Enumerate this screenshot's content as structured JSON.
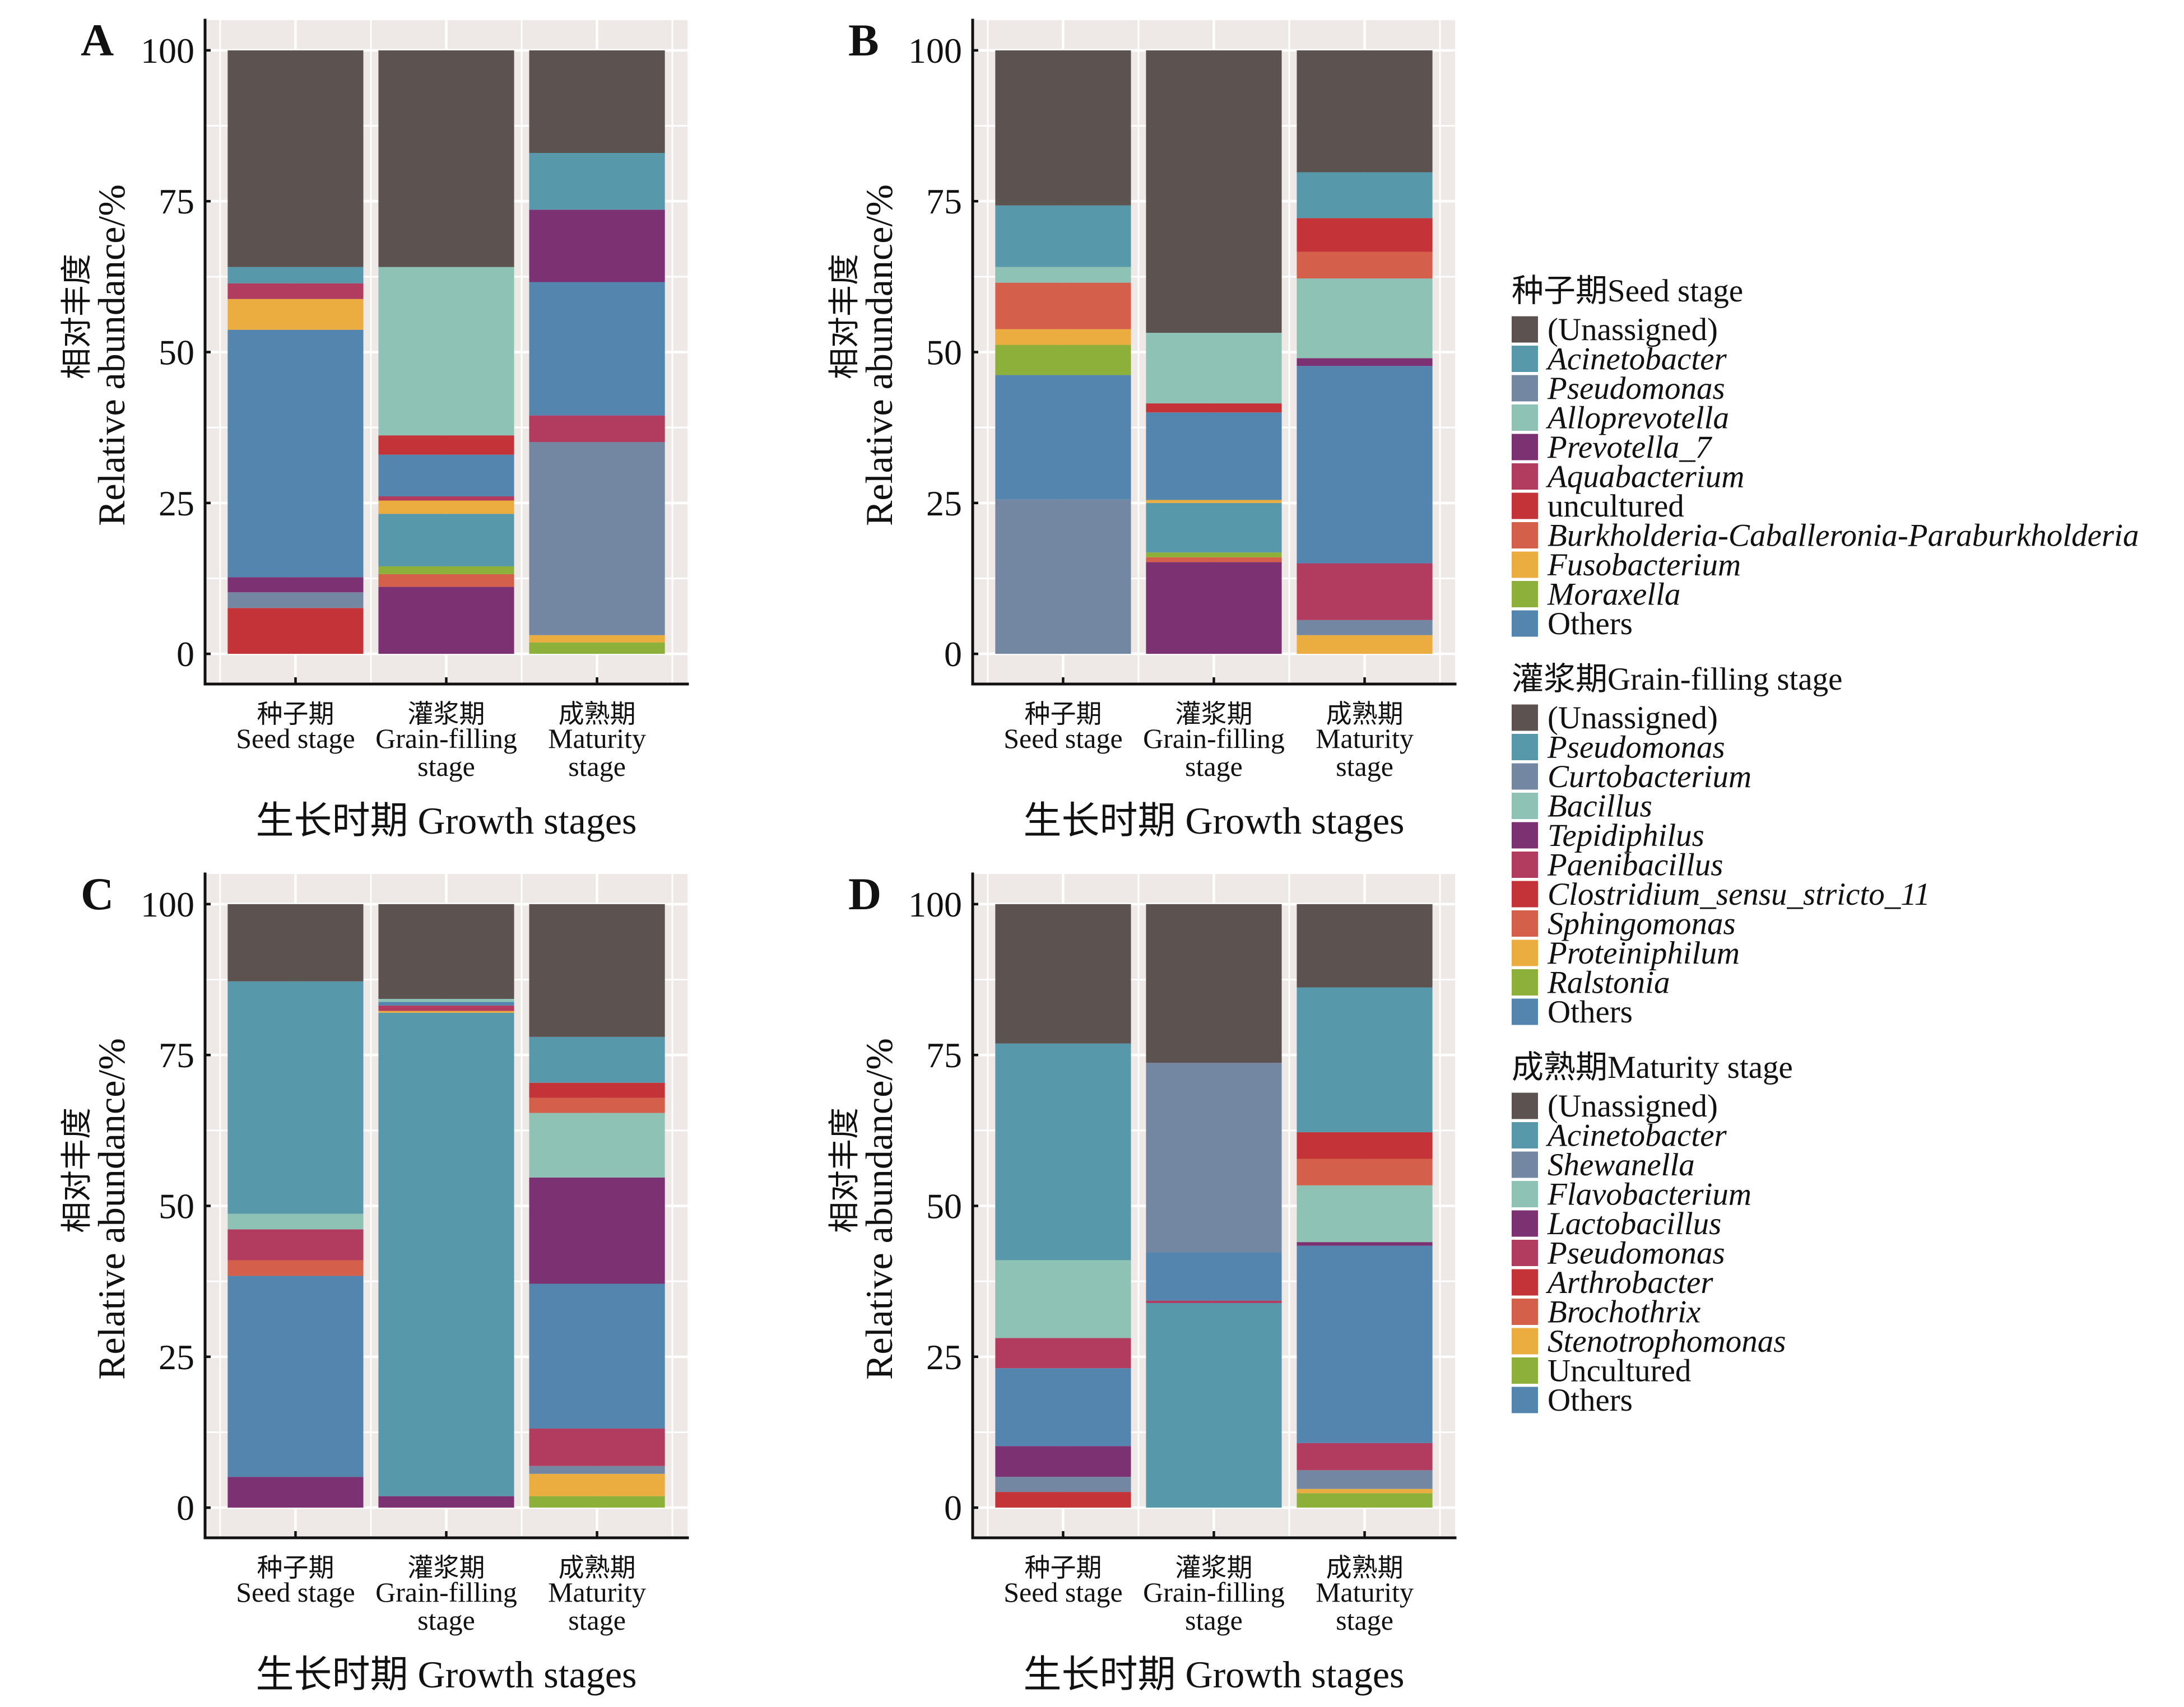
{
  "legend": [
    {
      "stage": "Seed stage",
      "title": "种子期Seed stage",
      "items": [
        {
          "label": "(Unassigned)",
          "italic": false,
          "color": "#5C524F"
        },
        {
          "label": "Acinetobacter",
          "italic": true,
          "color": "#5898AB"
        },
        {
          "label": "Pseudomonas",
          "italic": true,
          "color": "#7387A3"
        },
        {
          "label": "Alloprevotella",
          "italic": true,
          "color": "#8EC2B4"
        },
        {
          "label": "Prevotella_7",
          "italic": true,
          "color": "#7C3173"
        },
        {
          "label": "Aquabacterium",
          "italic": true,
          "color": "#B13C5F"
        },
        {
          "label": "uncultured",
          "italic": false,
          "color": "#C33337"
        },
        {
          "label": "Burkholderia-Caballeronia-Paraburkholderia",
          "italic": true,
          "color": "#D45F4A"
        },
        {
          "label": "Fusobacterium",
          "italic": true,
          "color": "#EBAD3F"
        },
        {
          "label": "Moraxella",
          "italic": true,
          "color": "#8DB03B"
        },
        {
          "label": "Others",
          "italic": false,
          "color": "#5385AE"
        }
      ]
    },
    {
      "stage": "Grain-filling stage",
      "title": "灌浆期Grain-filling stage",
      "items": [
        {
          "label": "(Unassigned)",
          "italic": false,
          "color": "#5C524F"
        },
        {
          "label": "Pseudomonas",
          "italic": true,
          "color": "#5898AB"
        },
        {
          "label": "Curtobacterium",
          "italic": true,
          "color": "#7387A3"
        },
        {
          "label": "Bacillus",
          "italic": true,
          "color": "#8EC2B4"
        },
        {
          "label": "Tepidiphilus",
          "italic": true,
          "color": "#7C3173"
        },
        {
          "label": "Paenibacillus",
          "italic": true,
          "color": "#B13C5F"
        },
        {
          "label": "Clostridium_sensu_stricto_11",
          "italic": true,
          "color": "#C33337"
        },
        {
          "label": "Sphingomonas",
          "italic": true,
          "color": "#D45F4A"
        },
        {
          "label": "Proteiniphilum",
          "italic": true,
          "color": "#EBAD3F"
        },
        {
          "label": "Ralstonia",
          "italic": true,
          "color": "#8DB03B"
        },
        {
          "label": "Others",
          "italic": false,
          "color": "#5385AE"
        }
      ]
    },
    {
      "stage": "Maturity stage",
      "title": "成熟期Maturity stage",
      "items": [
        {
          "label": "(Unassigned)",
          "italic": false,
          "color": "#5C524F"
        },
        {
          "label": "Acinetobacter",
          "italic": true,
          "color": "#5898AB"
        },
        {
          "label": "Shewanella",
          "italic": true,
          "color": "#7387A3"
        },
        {
          "label": "Flavobacterium",
          "italic": true,
          "color": "#8EC2B4"
        },
        {
          "label": "Lactobacillus",
          "italic": true,
          "color": "#7C3173"
        },
        {
          "label": "Pseudomonas",
          "italic": true,
          "color": "#B13C5F"
        },
        {
          "label": "Arthrobacter",
          "italic": true,
          "color": "#C33337"
        },
        {
          "label": "Brochothrix",
          "italic": true,
          "color": "#D45F4A"
        },
        {
          "label": "Stenotrophomonas",
          "italic": true,
          "color": "#EBAD3F"
        },
        {
          "label": "Uncultured",
          "italic": false,
          "color": "#8DB03B"
        },
        {
          "label": "Others",
          "italic": false,
          "color": "#5385AE"
        }
      ]
    }
  ],
  "chart_data": [
    {
      "panel": "A",
      "type": "bar",
      "stacked": true,
      "title": "",
      "xlabel": "生长时期 Growth stages",
      "ylabel": [
        "相对丰度",
        "Relative abundance/%"
      ],
      "ylim": [
        -5,
        105
      ],
      "yticks": [
        0,
        25,
        50,
        75,
        100
      ],
      "grid": true,
      "legend_position": "right",
      "categories": [
        "Seed stage",
        "Grain-filling stage",
        "Maturity stage"
      ],
      "category_labels": [
        [
          "种子期",
          "Seed stage"
        ],
        [
          "灌浆期",
          "Grain-filling",
          "stage"
        ],
        [
          "成熟期",
          "Maturity",
          "stage"
        ]
      ],
      "bars": [
        {
          "category": "Seed stage",
          "segments": [
            {
              "taxon": "uncultured",
              "value": 7.6
            },
            {
              "taxon": "Pseudomonas",
              "value": 2.6
            },
            {
              "taxon": "Prevotella_7",
              "value": 2.5
            },
            {
              "taxon": "Others",
              "value": 41.0
            },
            {
              "taxon": "Fusobacterium",
              "value": 5.1
            },
            {
              "taxon": "Aquabacterium",
              "value": 2.6
            },
            {
              "taxon": "Acinetobacter",
              "value": 2.7
            },
            {
              "taxon": "(Unassigned)",
              "value": 35.9
            }
          ]
        },
        {
          "category": "Grain-filling stage",
          "segments": [
            {
              "taxon": "Tepidiphilus",
              "value": 11.1
            },
            {
              "taxon": "Sphingomonas",
              "value": 2.1
            },
            {
              "taxon": "Ralstonia",
              "value": 1.3
            },
            {
              "taxon": "Pseudomonas",
              "value": 8.7
            },
            {
              "taxon": "Proteiniphilum",
              "value": 2.2
            },
            {
              "taxon": "Paenibacillus",
              "value": 0.7
            },
            {
              "taxon": "Others",
              "value": 6.9
            },
            {
              "taxon": "Clostridium_sensu_stricto_11",
              "value": 3.2
            },
            {
              "taxon": "Bacillus",
              "value": 27.9
            },
            {
              "taxon": "(Unassigned)",
              "value": 35.9
            }
          ]
        },
        {
          "category": "Maturity stage",
          "segments": [
            {
              "taxon": "Uncultured",
              "value": 1.9
            },
            {
              "taxon": "Stenotrophomonas",
              "value": 1.2
            },
            {
              "taxon": "Shewanella",
              "value": 32.0
            },
            {
              "taxon": "Pseudomonas",
              "value": 4.4
            },
            {
              "taxon": "Others",
              "value": 22.1
            },
            {
              "taxon": "Lactobacillus",
              "value": 12.0
            },
            {
              "taxon": "Acinetobacter",
              "value": 9.4
            },
            {
              "taxon": "(Unassigned)",
              "value": 17.0
            }
          ]
        }
      ]
    },
    {
      "panel": "B",
      "type": "bar",
      "stacked": true,
      "title": "",
      "xlabel": "生长时期 Growth stages",
      "ylabel": [
        "相对丰度",
        "Relative abundance/%"
      ],
      "ylim": [
        -5,
        105
      ],
      "yticks": [
        0,
        25,
        50,
        75,
        100
      ],
      "grid": true,
      "legend_position": "right",
      "categories": [
        "Seed stage",
        "Grain-filling stage",
        "Maturity stage"
      ],
      "category_labels": [
        [
          "种子期",
          "Seed stage"
        ],
        [
          "灌浆期",
          "Grain-filling",
          "stage"
        ],
        [
          "成熟期",
          "Maturity",
          "stage"
        ]
      ],
      "bars": [
        {
          "category": "Seed stage",
          "segments": [
            {
              "taxon": "Pseudomonas",
              "value": 25.6
            },
            {
              "taxon": "Others",
              "value": 20.6
            },
            {
              "taxon": "Moraxella",
              "value": 5.0
            },
            {
              "taxon": "Fusobacterium",
              "value": 2.6
            },
            {
              "taxon": "Burkholderia-Caballeronia-Paraburkholderia",
              "value": 7.7
            },
            {
              "taxon": "Alloprevotella",
              "value": 2.6
            },
            {
              "taxon": "Acinetobacter",
              "value": 10.2
            },
            {
              "taxon": "(Unassigned)",
              "value": 25.7
            }
          ]
        },
        {
          "category": "Grain-filling stage",
          "segments": [
            {
              "taxon": "Tepidiphilus",
              "value": 15.2
            },
            {
              "taxon": "Sphingomonas",
              "value": 0.8
            },
            {
              "taxon": "Ralstonia",
              "value": 0.8
            },
            {
              "taxon": "Pseudomonas",
              "value": 8.2
            },
            {
              "taxon": "Proteiniphilum",
              "value": 0.5
            },
            {
              "taxon": "Others",
              "value": 14.5
            },
            {
              "taxon": "Clostridium_sensu_stricto_11",
              "value": 1.5
            },
            {
              "taxon": "Bacillus",
              "value": 11.7
            },
            {
              "taxon": "(Unassigned)",
              "value": 46.8
            }
          ]
        },
        {
          "category": "Maturity stage",
          "segments": [
            {
              "taxon": "Stenotrophomonas",
              "value": 3.1
            },
            {
              "taxon": "Shewanella",
              "value": 2.5
            },
            {
              "taxon": "Pseudomonas",
              "value": 9.4
            },
            {
              "taxon": "Others",
              "value": 32.7
            },
            {
              "taxon": "Lactobacillus",
              "value": 1.3
            },
            {
              "taxon": "Flavobacterium",
              "value": 13.2
            },
            {
              "taxon": "Brochothrix",
              "value": 4.4
            },
            {
              "taxon": "Arthrobacter",
              "value": 5.6
            },
            {
              "taxon": "Acinetobacter",
              "value": 7.6
            },
            {
              "taxon": "(Unassigned)",
              "value": 20.2
            }
          ]
        }
      ]
    },
    {
      "panel": "C",
      "type": "bar",
      "stacked": true,
      "title": "",
      "xlabel": "生长时期 Growth stages",
      "ylabel": [
        "相对丰度",
        "Relative abundance/%"
      ],
      "ylim": [
        -5,
        105
      ],
      "yticks": [
        0,
        25,
        50,
        75,
        100
      ],
      "grid": true,
      "legend_position": "right",
      "categories": [
        "Seed stage",
        "Grain-filling stage",
        "Maturity stage"
      ],
      "category_labels": [
        [
          "种子期",
          "Seed stage"
        ],
        [
          "灌浆期",
          "Grain-filling",
          "stage"
        ],
        [
          "成熟期",
          "Maturity",
          "stage"
        ]
      ],
      "bars": [
        {
          "category": "Seed stage",
          "segments": [
            {
              "taxon": "Prevotella_7",
              "value": 5.1
            },
            {
              "taxon": "Others",
              "value": 33.3
            },
            {
              "taxon": "Burkholderia-Caballeronia-Paraburkholderia",
              "value": 2.6
            },
            {
              "taxon": "Aquabacterium",
              "value": 5.1
            },
            {
              "taxon": "Alloprevotella",
              "value": 2.6
            },
            {
              "taxon": "Acinetobacter",
              "value": 38.5
            },
            {
              "taxon": "(Unassigned)",
              "value": 12.8
            }
          ]
        },
        {
          "category": "Grain-filling stage",
          "segments": [
            {
              "taxon": "Tepidiphilus",
              "value": 1.9
            },
            {
              "taxon": "Pseudomonas",
              "value": 80.1
            },
            {
              "taxon": "Proteiniphilum",
              "value": 0.3
            },
            {
              "taxon": "Paenibacillus",
              "value": 0.9
            },
            {
              "taxon": "Others",
              "value": 0.6
            },
            {
              "taxon": "Bacillus",
              "value": 0.5
            },
            {
              "taxon": "(Unassigned)",
              "value": 15.7
            }
          ]
        },
        {
          "category": "Maturity stage",
          "segments": [
            {
              "taxon": "Uncultured",
              "value": 1.9
            },
            {
              "taxon": "Stenotrophomonas",
              "value": 3.7
            },
            {
              "taxon": "Shewanella",
              "value": 1.3
            },
            {
              "taxon": "Pseudomonas",
              "value": 6.2
            },
            {
              "taxon": "Others",
              "value": 24.0
            },
            {
              "taxon": "Lactobacillus",
              "value": 17.6
            },
            {
              "taxon": "Flavobacterium",
              "value": 10.7
            },
            {
              "taxon": "Brochothrix",
              "value": 2.5
            },
            {
              "taxon": "Arthrobacter",
              "value": 2.5
            },
            {
              "taxon": "Acinetobacter",
              "value": 7.6
            },
            {
              "taxon": "(Unassigned)",
              "value": 22.0
            }
          ]
        }
      ]
    },
    {
      "panel": "D",
      "type": "bar",
      "stacked": true,
      "title": "",
      "xlabel": "生长时期 Growth stages",
      "ylabel": [
        "相对丰度",
        "Relative abundance/%"
      ],
      "ylim": [
        -5,
        105
      ],
      "yticks": [
        0,
        25,
        50,
        75,
        100
      ],
      "grid": true,
      "legend_position": "right",
      "categories": [
        "Seed stage",
        "Grain-filling stage",
        "Maturity stage"
      ],
      "category_labels": [
        [
          "种子期",
          "Seed stage"
        ],
        [
          "灌浆期",
          "Grain-filling",
          "stage"
        ],
        [
          "成熟期",
          "Maturity",
          "stage"
        ]
      ],
      "bars": [
        {
          "category": "Seed stage",
          "segments": [
            {
              "taxon": "uncultured",
              "value": 2.6
            },
            {
              "taxon": "Pseudomonas",
              "value": 2.5
            },
            {
              "taxon": "Prevotella_7",
              "value": 5.1
            },
            {
              "taxon": "Others",
              "value": 12.9
            },
            {
              "taxon": "Aquabacterium",
              "value": 5.0
            },
            {
              "taxon": "Alloprevotella",
              "value": 12.9
            },
            {
              "taxon": "Acinetobacter",
              "value": 35.9
            },
            {
              "taxon": "(Unassigned)",
              "value": 23.1
            }
          ]
        },
        {
          "category": "Grain-filling stage",
          "segments": [
            {
              "taxon": "Pseudomonas",
              "value": 33.9
            },
            {
              "taxon": "Paenibacillus",
              "value": 0.4
            },
            {
              "taxon": "Others",
              "value": 8.0
            },
            {
              "taxon": "Curtobacterium",
              "value": 31.4
            },
            {
              "taxon": "(Unassigned)",
              "value": 26.3
            }
          ]
        },
        {
          "category": "Maturity stage",
          "segments": [
            {
              "taxon": "Uncultured",
              "value": 2.4
            },
            {
              "taxon": "Stenotrophomonas",
              "value": 0.7
            },
            {
              "taxon": "Shewanella",
              "value": 3.1
            },
            {
              "taxon": "Pseudomonas",
              "value": 4.5
            },
            {
              "taxon": "Others",
              "value": 32.7
            },
            {
              "taxon": "Lactobacillus",
              "value": 0.6
            },
            {
              "taxon": "Flavobacterium",
              "value": 9.4
            },
            {
              "taxon": "Brochothrix",
              "value": 4.4
            },
            {
              "taxon": "Arthrobacter",
              "value": 4.4
            },
            {
              "taxon": "Acinetobacter",
              "value": 24.0
            },
            {
              "taxon": "(Unassigned)",
              "value": 13.8
            }
          ]
        }
      ]
    }
  ]
}
